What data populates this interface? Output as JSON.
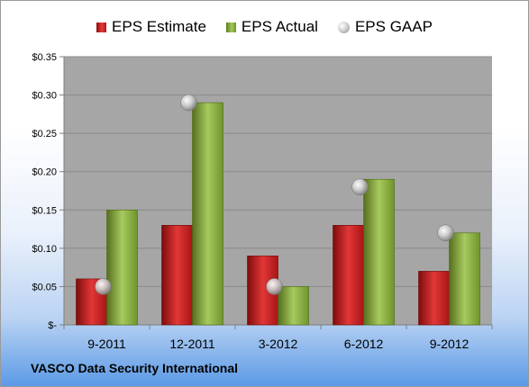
{
  "chart_data": {
    "type": "bar",
    "categories": [
      "9-2011",
      "12-2011",
      "3-2012",
      "6-2012",
      "9-2012"
    ],
    "series": [
      {
        "name": "EPS Estimate",
        "type": "bar",
        "values": [
          0.06,
          0.13,
          0.09,
          0.13,
          0.07
        ],
        "color": "#c62020"
      },
      {
        "name": "EPS Actual",
        "type": "bar",
        "values": [
          0.15,
          0.29,
          0.05,
          0.19,
          0.12
        ],
        "color": "#8db040"
      },
      {
        "name": "EPS GAAP",
        "type": "scatter",
        "values": [
          0.05,
          0.29,
          0.05,
          0.18,
          0.12
        ],
        "color": "#b8b8b8"
      }
    ],
    "ylim": [
      0,
      0.35
    ],
    "yticks": [
      0,
      0.05,
      0.1,
      0.15,
      0.2,
      0.25,
      0.3,
      0.35
    ],
    "ytick_labels": [
      "$-",
      "$0.05",
      "$0.10",
      "$0.15",
      "$0.20",
      "$0.25",
      "$0.30",
      "$0.35"
    ],
    "grid": true,
    "legend_position": "top"
  },
  "legend": {
    "estimate_label": "EPS Estimate",
    "actual_label": "EPS Actual",
    "gaap_label": "EPS GAAP"
  },
  "footer": {
    "company": "VASCO Data Security International"
  },
  "colors": {
    "plot_background": "#a6a6a6",
    "estimate": "#c62020",
    "actual": "#8db040",
    "gaap": "#b8b8b8"
  }
}
